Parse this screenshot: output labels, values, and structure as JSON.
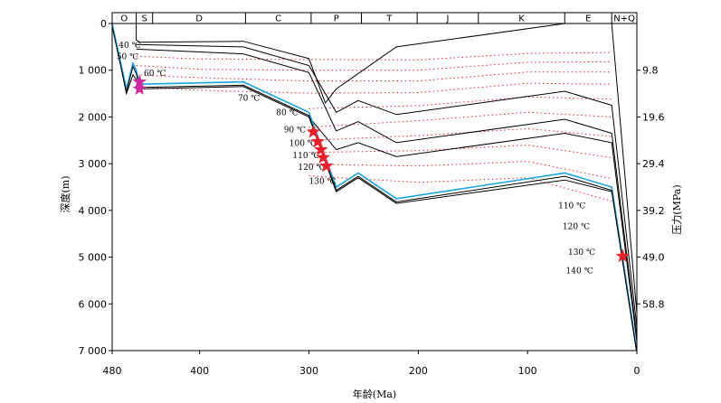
{
  "chart_data": {
    "type": "line",
    "x_axis": {
      "label": "年龄(Ma)",
      "range": [
        480,
        0
      ],
      "ticks": [
        480,
        400,
        300,
        200,
        100,
        0
      ]
    },
    "y_axis_left": {
      "label": "深度(m)",
      "range": [
        0,
        7000
      ],
      "ticks": [
        0,
        1000,
        2000,
        3000,
        4000,
        5000,
        6000,
        7000
      ],
      "tick_labels": [
        "0",
        "1 000",
        "2 000",
        "3 000",
        "4 000",
        "5 000",
        "6 000",
        "7 000"
      ]
    },
    "y_axis_right": {
      "label": "压力(MPa)",
      "ticks": [
        {
          "depth": 1000,
          "label": "9.8"
        },
        {
          "depth": 2000,
          "label": "19.6"
        },
        {
          "depth": 3000,
          "label": "29.4"
        },
        {
          "depth": 4000,
          "label": "39.2"
        },
        {
          "depth": 5000,
          "label": "49.0"
        },
        {
          "depth": 6000,
          "label": "58.8"
        }
      ]
    },
    "periods": [
      {
        "label": "O",
        "start": 480,
        "end": 458
      },
      {
        "label": "S",
        "start": 458,
        "end": 443
      },
      {
        "label": "D",
        "start": 443,
        "end": 358
      },
      {
        "label": "C",
        "start": 358,
        "end": 298
      },
      {
        "label": "P",
        "start": 298,
        "end": 252
      },
      {
        "label": "T",
        "start": 252,
        "end": 201
      },
      {
        "label": "J",
        "start": 201,
        "end": 145
      },
      {
        "label": "K",
        "start": 145,
        "end": 66
      },
      {
        "label": "E",
        "start": 66,
        "end": 23
      },
      {
        "label": "N+Q",
        "start": 23,
        "end": 0
      }
    ],
    "burial_curves": [
      {
        "points": [
          [
            458,
            0
          ],
          [
            458,
            350
          ],
          [
            455,
            400
          ],
          [
            360,
            380
          ],
          [
            300,
            750
          ],
          [
            285,
            1700
          ],
          [
            275,
            1400
          ],
          [
            220,
            500
          ],
          [
            66,
            0
          ],
          [
            23,
            0
          ],
          [
            0,
            6200
          ]
        ]
      },
      {
        "points": [
          [
            458,
            450
          ],
          [
            360,
            500
          ],
          [
            300,
            900
          ],
          [
            275,
            1900
          ],
          [
            255,
            1650
          ],
          [
            220,
            1950
          ],
          [
            66,
            1450
          ],
          [
            23,
            1750
          ],
          [
            0,
            6500
          ]
        ]
      },
      {
        "points": [
          [
            458,
            550
          ],
          [
            360,
            650
          ],
          [
            300,
            1050
          ],
          [
            275,
            2300
          ],
          [
            255,
            2100
          ],
          [
            220,
            2550
          ],
          [
            66,
            2050
          ],
          [
            23,
            2350
          ],
          [
            0,
            6700
          ]
        ]
      },
      {
        "points": [
          [
            480,
            0
          ],
          [
            467,
            1500
          ],
          [
            461,
            1100
          ],
          [
            458,
            1200
          ],
          [
            455,
            1400
          ],
          [
            360,
            1350
          ],
          [
            300,
            2000
          ],
          [
            275,
            2700
          ],
          [
            255,
            2550
          ],
          [
            220,
            2850
          ],
          [
            66,
            2350
          ],
          [
            23,
            2550
          ],
          [
            0,
            6800
          ]
        ]
      },
      {
        "points": [
          [
            480,
            0
          ],
          [
            467,
            1400
          ],
          [
            461,
            850
          ],
          [
            458,
            1000
          ],
          [
            455,
            1300
          ],
          [
            360,
            1250
          ],
          [
            300,
            1900
          ],
          [
            275,
            3500
          ],
          [
            255,
            3200
          ],
          [
            220,
            3750
          ],
          [
            66,
            3200
          ],
          [
            23,
            3500
          ],
          [
            0,
            7000
          ]
        ],
        "highlight": true
      },
      {
        "points": [
          [
            300,
            2000
          ],
          [
            275,
            3600
          ],
          [
            255,
            3300
          ],
          [
            220,
            3850
          ],
          [
            66,
            3350
          ],
          [
            23,
            3600
          ],
          [
            0,
            7050
          ]
        ]
      }
    ],
    "isotherms": [
      {
        "label": "40 ℃",
        "points": [
          [
            458,
            700
          ],
          [
            400,
            760
          ],
          [
            300,
            770
          ],
          [
            200,
            780
          ],
          [
            100,
            640
          ],
          [
            23,
            620
          ]
        ]
      },
      {
        "label": "50 ℃",
        "points": [
          [
            458,
            900
          ],
          [
            400,
            980
          ],
          [
            300,
            1000
          ],
          [
            200,
            1000
          ],
          [
            100,
            830
          ],
          [
            23,
            820
          ]
        ]
      },
      {
        "label": "60 ℃",
        "points": [
          [
            458,
            1100
          ],
          [
            400,
            1160
          ],
          [
            300,
            1230
          ],
          [
            200,
            1230
          ],
          [
            100,
            1040
          ],
          [
            23,
            1040
          ]
        ]
      },
      {
        "label": "70 ℃",
        "points": [
          [
            458,
            1350
          ],
          [
            400,
            1430
          ],
          [
            300,
            1490
          ],
          [
            200,
            1480
          ],
          [
            100,
            1280
          ],
          [
            23,
            1300
          ]
        ]
      },
      {
        "label": "80 ℃",
        "points": [
          [
            300,
            1820
          ],
          [
            200,
            1760
          ],
          [
            100,
            1570
          ],
          [
            23,
            1620
          ]
        ]
      },
      {
        "label": "90 ℃",
        "points": [
          [
            300,
            2220
          ],
          [
            200,
            2080
          ],
          [
            100,
            1900
          ],
          [
            23,
            2000
          ]
        ]
      },
      {
        "label": "100 ℃",
        "points": [
          [
            300,
            2500
          ],
          [
            200,
            2400
          ],
          [
            100,
            2250
          ],
          [
            23,
            2420
          ]
        ]
      },
      {
        "label": "110 ℃",
        "points": [
          [
            300,
            2760
          ],
          [
            200,
            2720
          ],
          [
            100,
            2600
          ],
          [
            23,
            2870
          ]
        ]
      },
      {
        "label": "120 ℃",
        "points": [
          [
            300,
            3010
          ],
          [
            200,
            3050
          ],
          [
            100,
            2950
          ],
          [
            23,
            3320
          ]
        ]
      },
      {
        "label": "130 ℃",
        "points": [
          [
            300,
            3260
          ],
          [
            200,
            3400
          ],
          [
            100,
            3300
          ],
          [
            23,
            3800
          ]
        ]
      }
    ],
    "isotherm_labels_left": [
      {
        "text": "40 ℃",
        "age": 474,
        "depth": 520
      },
      {
        "text": "50 ℃",
        "age": 476,
        "depth": 760
      },
      {
        "text": "60 ℃",
        "age": 451,
        "depth": 1120
      },
      {
        "text": "70 ℃",
        "age": 365,
        "depth": 1650
      },
      {
        "text": "80 ℃",
        "age": 330,
        "depth": 1960
      },
      {
        "text": "90 ℃",
        "age": 323,
        "depth": 2330
      },
      {
        "text": "100 ℃",
        "age": 318,
        "depth": 2620
      },
      {
        "text": "110 ℃",
        "age": 315,
        "depth": 2880
      },
      {
        "text": "120 ℃",
        "age": 310,
        "depth": 3130
      },
      {
        "text": "130 ℃",
        "age": 300,
        "depth": 3430
      }
    ],
    "isotherm_labels_right": [
      {
        "text": "110 ℃",
        "age": 47,
        "depth": 3950
      },
      {
        "text": "120 ℃",
        "age": 43,
        "depth": 4400
      },
      {
        "text": "130 ℃",
        "age": 38,
        "depth": 4950
      },
      {
        "text": "140 ℃",
        "age": 40,
        "depth": 3370,
        "depth_override": 5350
      }
    ],
    "markers": [
      {
        "age": 455,
        "depth": 1250,
        "color": "#cc2a9f",
        "kind": "magenta-star"
      },
      {
        "age": 455,
        "depth": 1400,
        "color": "#cc2a9f",
        "kind": "magenta-star"
      },
      {
        "age": 296,
        "depth": 2320,
        "color": "#e8202a",
        "kind": "red-star"
      },
      {
        "age": 292,
        "depth": 2530,
        "color": "#e8202a",
        "kind": "red-star"
      },
      {
        "age": 289,
        "depth": 2700,
        "color": "#e8202a",
        "kind": "red-star"
      },
      {
        "age": 287,
        "depth": 2870,
        "color": "#e8202a",
        "kind": "red-star"
      },
      {
        "age": 284,
        "depth": 3050,
        "color": "#e8202a",
        "kind": "red-star"
      },
      {
        "age": 13,
        "depth": 4980,
        "color": "#e8202a",
        "kind": "red-star"
      }
    ]
  }
}
